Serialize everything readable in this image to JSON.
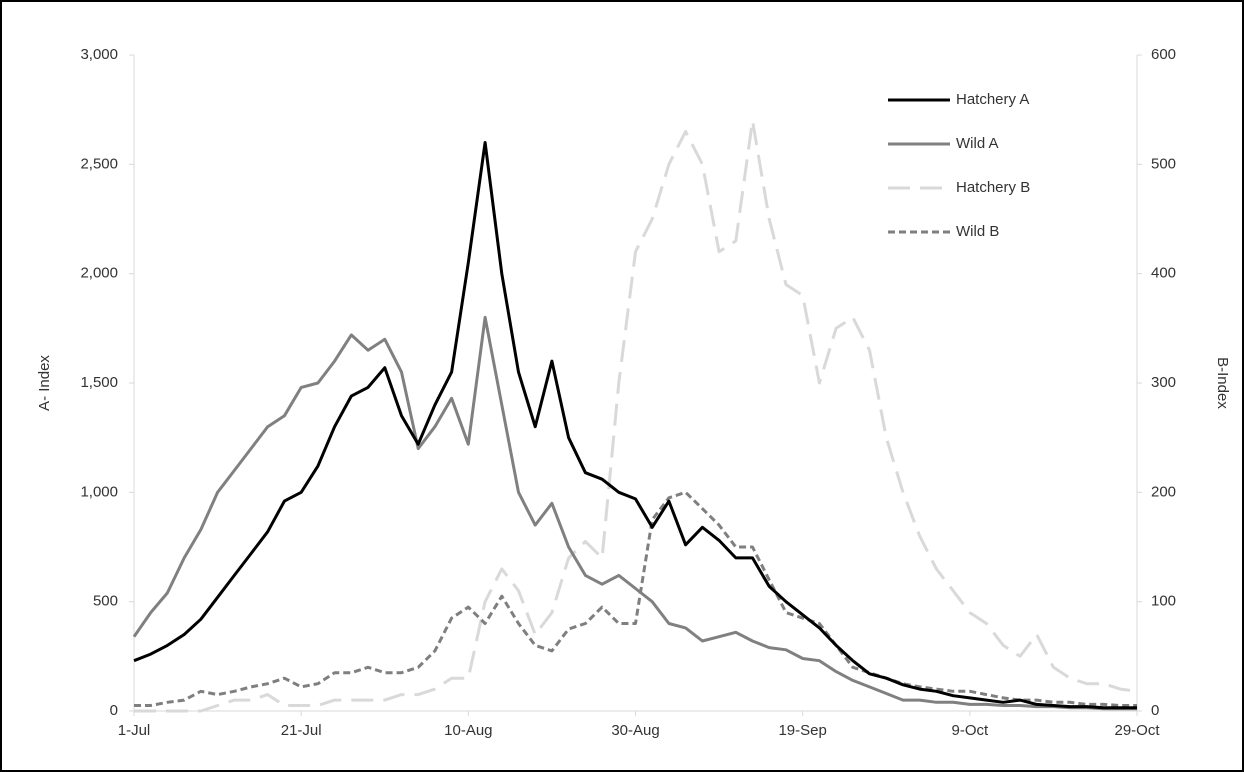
{
  "chart_data": {
    "type": "line",
    "categories": [
      "1-Jul",
      null,
      null,
      null,
      null,
      null,
      null,
      null,
      null,
      null,
      "21-Jul",
      null,
      null,
      null,
      null,
      null,
      null,
      null,
      null,
      null,
      "10-Aug",
      null,
      null,
      null,
      null,
      null,
      null,
      null,
      null,
      null,
      "30-Aug",
      null,
      null,
      null,
      null,
      null,
      null,
      null,
      null,
      null,
      "19-Sep",
      null,
      null,
      null,
      null,
      null,
      null,
      null,
      null,
      null,
      "9-Oct",
      null,
      null,
      null,
      null,
      null,
      null,
      null,
      null,
      null,
      "29-Oct"
    ],
    "ylabel": "A- Index",
    "y2label": "B-Index",
    "ylim": [
      0,
      3000
    ],
    "yticks": [
      0,
      500,
      {
        "value": 1000,
        "label": "1,000"
      },
      {
        "value": 1500,
        "label": "1,500"
      },
      {
        "value": 2000,
        "label": "2,000"
      },
      {
        "value": 2500,
        "label": "2,500"
      },
      {
        "value": 3000,
        "label": "3,000"
      }
    ],
    "y2lim": [
      0,
      600
    ],
    "y2ticks": [
      0,
      100,
      200,
      300,
      400,
      500,
      600
    ],
    "grid": false,
    "legend": "upper right",
    "series": [
      {
        "name": "Hatchery A",
        "color": "#000000",
        "style": "solid",
        "values": [
          230,
          260,
          300,
          350,
          420,
          520,
          620,
          720,
          820,
          960,
          1000,
          1120,
          1300,
          1440,
          1480,
          1570,
          1350,
          1220,
          1400,
          1550,
          2050,
          2600,
          2000,
          1550,
          1300,
          1600,
          1250,
          1090,
          1060,
          1000,
          970,
          840,
          960,
          760,
          840,
          780,
          700,
          700,
          570,
          500,
          440,
          380,
          300,
          230,
          170,
          150,
          120,
          100,
          90,
          70,
          60,
          50,
          40,
          50,
          30,
          25,
          20,
          20,
          15,
          15,
          15
        ]
      },
      {
        "name": "Wild A",
        "color": "#808080",
        "style": "solid",
        "values": [
          340,
          450,
          540,
          700,
          830,
          1000,
          1100,
          1200,
          1300,
          1350,
          1480,
          1500,
          1600,
          1720,
          1650,
          1700,
          1550,
          1200,
          1300,
          1430,
          1220,
          1800,
          1400,
          1000,
          850,
          950,
          750,
          620,
          580,
          620,
          560,
          500,
          400,
          380,
          320,
          340,
          360,
          320,
          290,
          280,
          240,
          230,
          180,
          140,
          110,
          80,
          50,
          50,
          40,
          40,
          30,
          30,
          25,
          25,
          20,
          20,
          15,
          15,
          10,
          10,
          10
        ]
      },
      {
        "name": "Hatchery B",
        "color": "#d9d9d9",
        "style": "long-dash",
        "axis": "y2",
        "values": [
          0,
          0,
          0,
          0,
          0,
          5,
          10,
          10,
          15,
          5,
          5,
          5,
          10,
          10,
          10,
          10,
          15,
          15,
          20,
          30,
          30,
          100,
          130,
          110,
          70,
          90,
          140,
          155,
          140,
          300,
          420,
          450,
          500,
          530,
          500,
          420,
          430,
          540,
          450,
          390,
          380,
          300,
          350,
          360,
          330,
          250,
          200,
          160,
          130,
          110,
          90,
          80,
          60,
          50,
          70,
          40,
          30,
          25,
          25,
          20,
          18
        ]
      },
      {
        "name": "Wild B",
        "color": "#7f7f7f",
        "style": "short-dash",
        "axis": "y2",
        "values": [
          5,
          5,
          8,
          10,
          18,
          15,
          18,
          22,
          25,
          30,
          22,
          25,
          35,
          35,
          40,
          35,
          35,
          40,
          55,
          85,
          95,
          80,
          105,
          80,
          60,
          55,
          75,
          80,
          95,
          80,
          80,
          175,
          195,
          200,
          185,
          170,
          150,
          150,
          120,
          90,
          85,
          80,
          60,
          40,
          35,
          30,
          25,
          22,
          20,
          18,
          18,
          15,
          12,
          10,
          10,
          8,
          8,
          6,
          6,
          5,
          5
        ]
      }
    ]
  }
}
